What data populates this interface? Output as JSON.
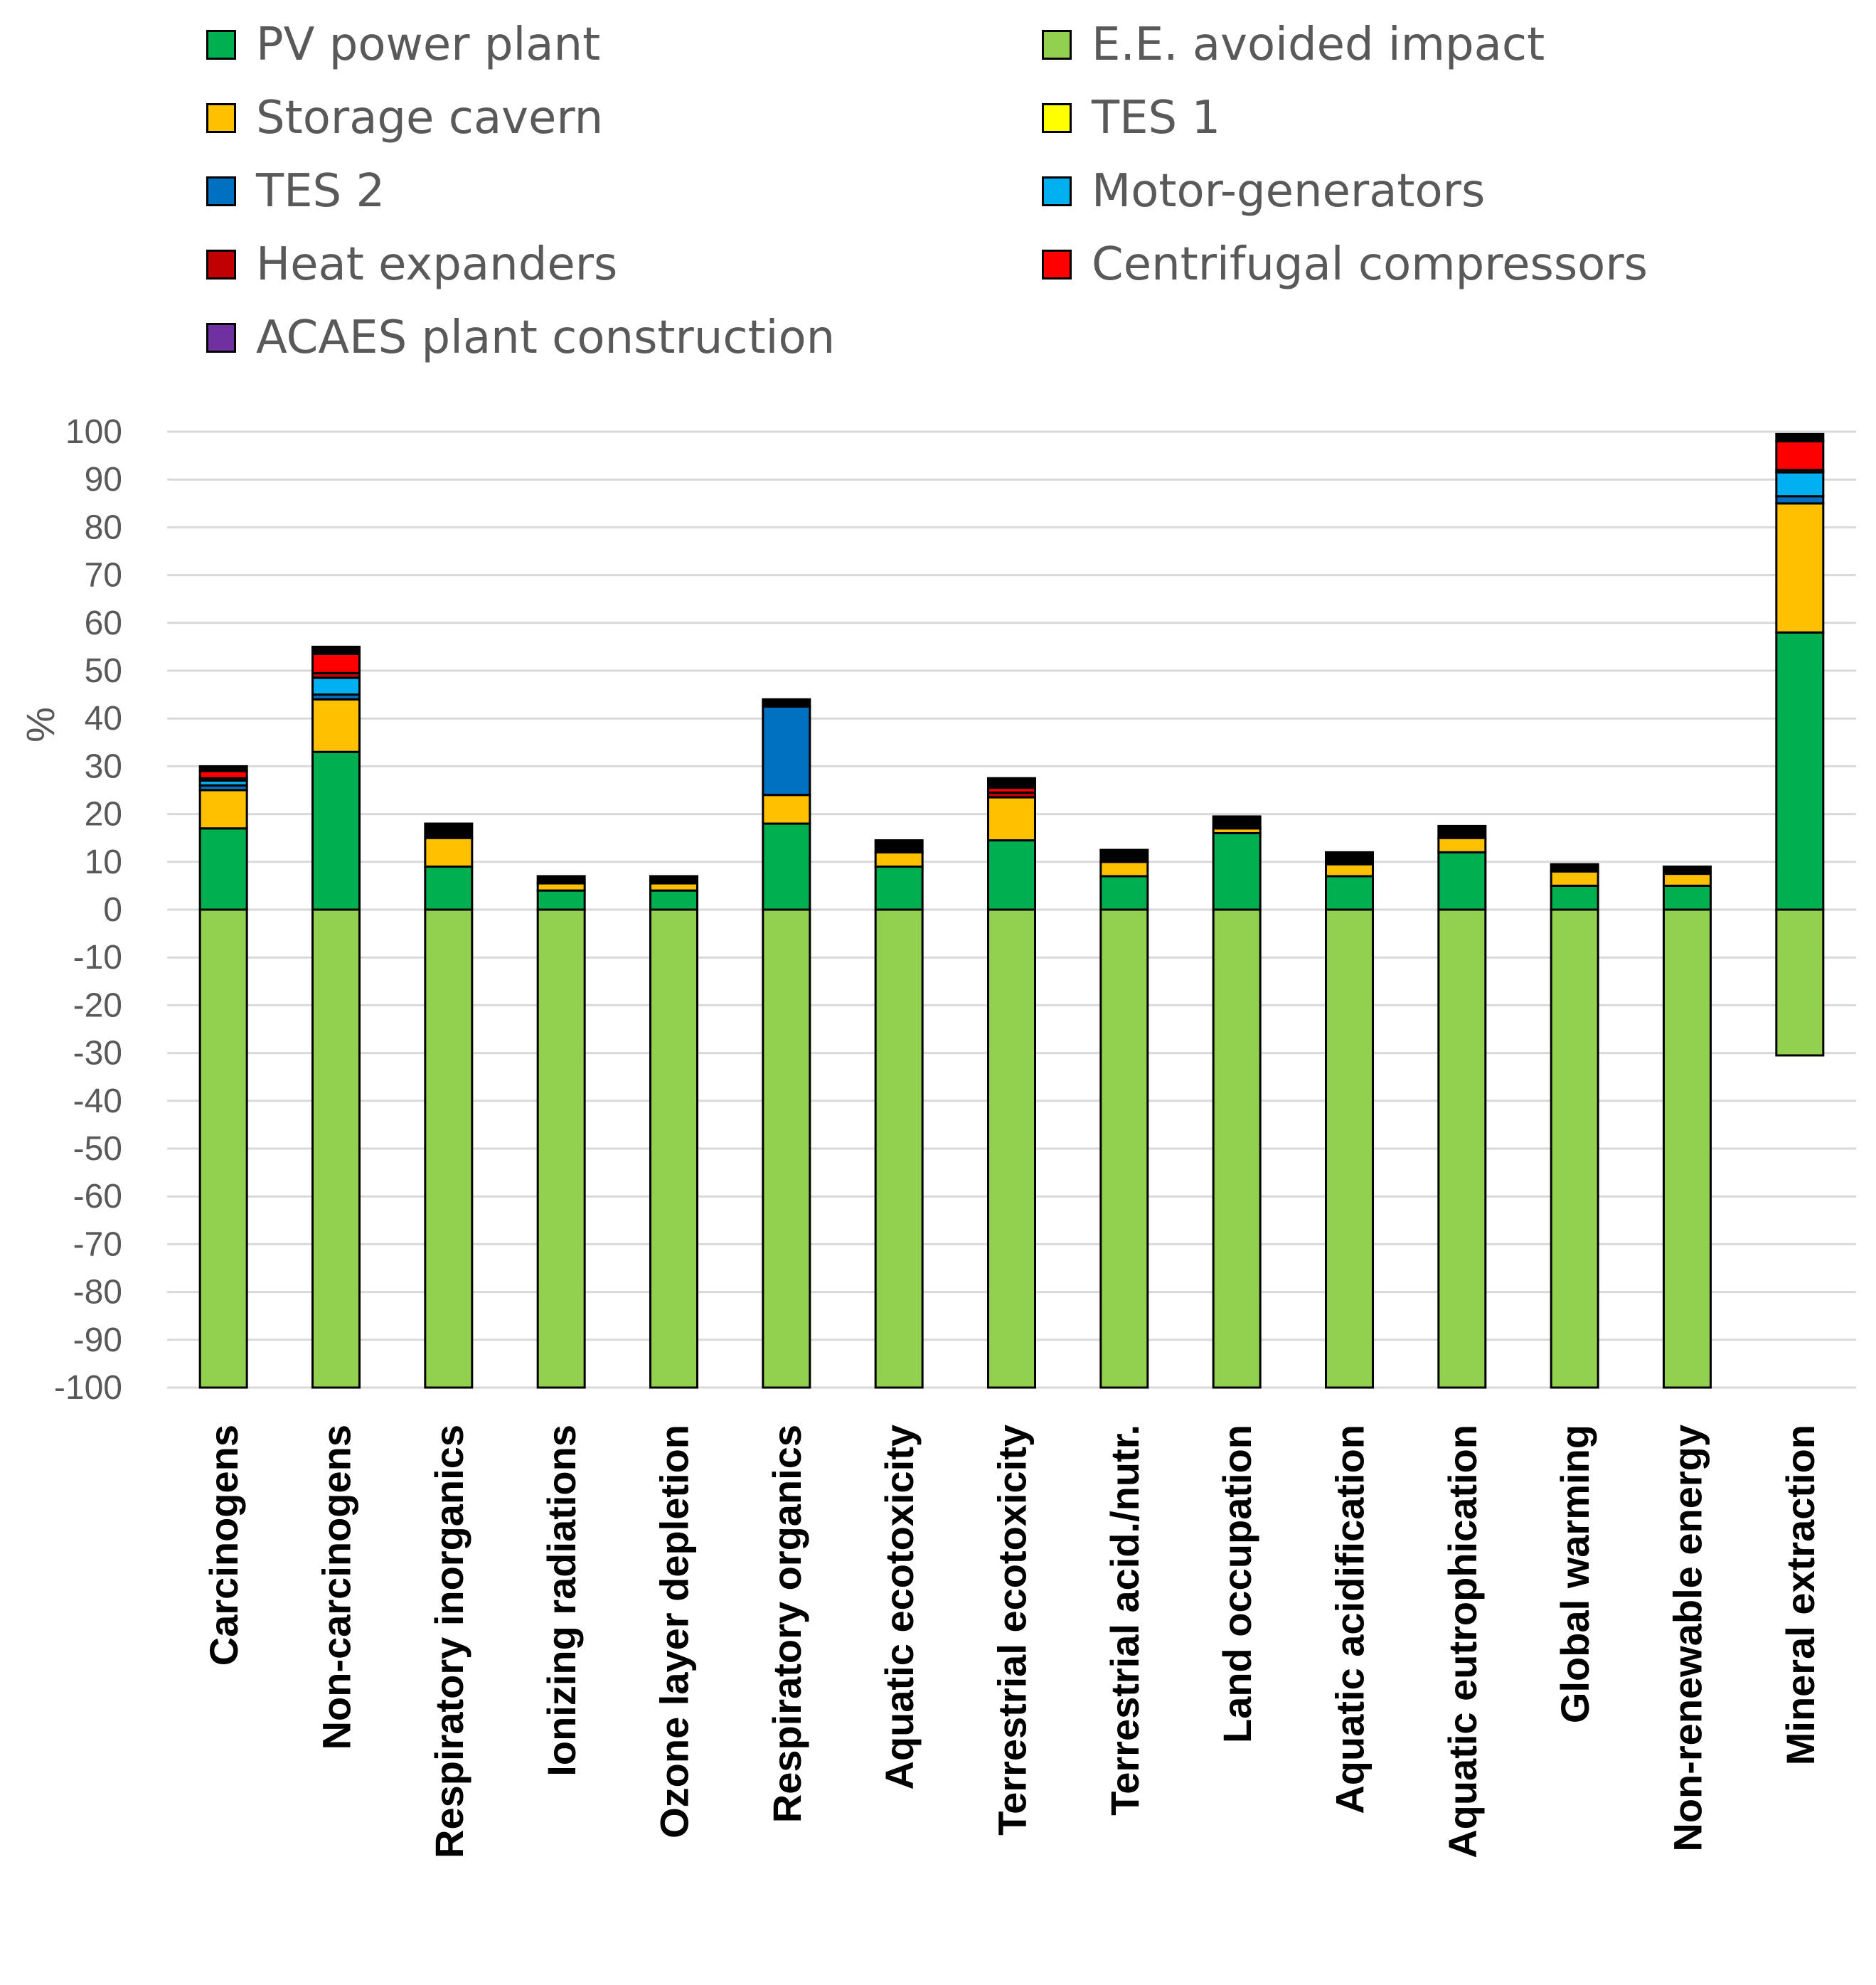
{
  "chart_data": {
    "type": "bar",
    "stacked": true,
    "title": "",
    "xlabel": "",
    "ylabel": "%",
    "ylim": [
      -100,
      100
    ],
    "ytick_step": 10,
    "grid": true,
    "legend_position": "top",
    "categories": [
      "Carcinogens",
      "Non-carcinogens",
      "Respiratory inorganics",
      "Ionizing radiations",
      "Ozone layer depletion",
      "Respiratory organics",
      "Aquatic ecotoxicity",
      "Terrestrial ecotoxicity",
      "Terrestrial acid./nutr.",
      "Land occupation",
      "Aquatic acidification",
      "Aquatic eutrophication",
      "Global warming",
      "Non-renewable energy",
      "Mineral extraction"
    ],
    "series": [
      {
        "name": "PV power plant",
        "color": "#00B050",
        "values": [
          17,
          33,
          9,
          4,
          4,
          18,
          9,
          14.5,
          7,
          16,
          7,
          12,
          5,
          5,
          58
        ]
      },
      {
        "name": "E.E. avoided impact",
        "color": "#92D050",
        "values": [
          -100,
          -100,
          -100,
          -100,
          -100,
          -100,
          -100,
          -100,
          -100,
          -100,
          -100,
          -100,
          -100,
          -100,
          -30.5
        ]
      },
      {
        "name": "Storage cavern",
        "color": "#FFC000",
        "values": [
          8,
          11,
          6,
          1.5,
          1.5,
          6,
          3,
          9,
          3,
          1,
          2.5,
          3,
          3,
          2.5,
          27
        ]
      },
      {
        "name": "TES 1",
        "color": "#FFFF00",
        "values": [
          0,
          0,
          0,
          0,
          0,
          0,
          0,
          0,
          0,
          0,
          0,
          0,
          0,
          0,
          0
        ]
      },
      {
        "name": "TES 2",
        "color": "#0070C0",
        "values": [
          1,
          1,
          0,
          0,
          0,
          18.5,
          0,
          0,
          0,
          0,
          0,
          0,
          0,
          0,
          1.5
        ]
      },
      {
        "name": "Motor-generators",
        "color": "#00B0F0",
        "values": [
          1,
          3.5,
          0,
          0,
          0,
          0,
          0,
          0,
          0,
          0,
          0,
          0,
          0,
          0,
          5
        ]
      },
      {
        "name": "Heat expanders",
        "color": "#C00000",
        "values": [
          0.5,
          1,
          0,
          0,
          0,
          0,
          0,
          1,
          0,
          0,
          0,
          0,
          0,
          0,
          0.5
        ]
      },
      {
        "name": "Centrifugal compressors",
        "color": "#FF0000",
        "values": [
          1.5,
          4,
          0,
          0,
          0,
          0,
          0,
          1,
          0,
          0,
          0,
          0,
          0,
          0,
          6
        ]
      },
      {
        "name": "ACAES plant construction",
        "color": "#7030A0",
        "values": [
          0,
          0,
          0,
          0,
          0,
          0,
          0,
          0,
          0,
          0,
          0,
          0,
          0,
          0,
          0
        ]
      }
    ],
    "other_segment": {
      "color": "#000000",
      "values": [
        1,
        1.5,
        3,
        1.5,
        1.5,
        1.5,
        2.5,
        2,
        2.5,
        2.5,
        2.5,
        2.5,
        1.5,
        1.5,
        1.5
      ]
    }
  }
}
